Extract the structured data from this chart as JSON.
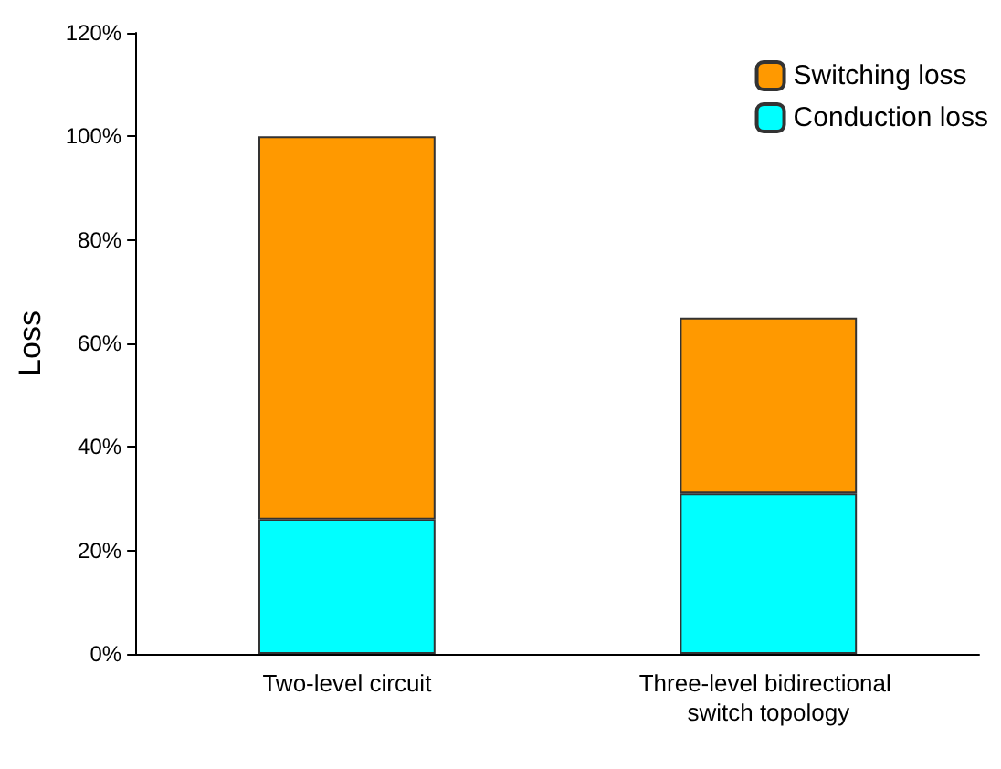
{
  "chart_data": {
    "type": "bar",
    "stacked": true,
    "ylabel": "Loss",
    "categories": [
      "Two-level circuit",
      "Three-level bidirectional switch topology"
    ],
    "series": [
      {
        "name": "Conduction loss",
        "color": "#00ffff",
        "values": [
          26,
          31
        ]
      },
      {
        "name": "Switching loss",
        "color": "#ff9900",
        "values": [
          74,
          34
        ]
      }
    ],
    "ylim": [
      0,
      120
    ],
    "yticks": [
      {
        "value": 0,
        "label": "0%"
      },
      {
        "value": 20,
        "label": "20%"
      },
      {
        "value": 40,
        "label": "40%"
      },
      {
        "value": 60,
        "label": "60%"
      },
      {
        "value": 80,
        "label": "80%"
      },
      {
        "value": 100,
        "label": "100%"
      },
      {
        "value": 120,
        "label": "120%"
      }
    ],
    "grid": false,
    "legend": "top right"
  }
}
